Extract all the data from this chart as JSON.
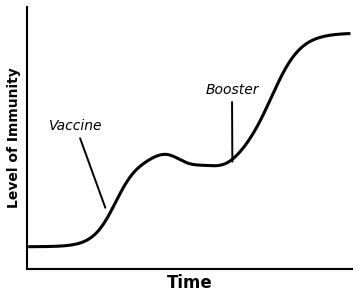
{
  "title": "",
  "xlabel": "Time",
  "ylabel": "Level of Immunity",
  "line_color": "#000000",
  "line_width": 2.2,
  "bg_color": "#ffffff",
  "vaccine_label": "Vaccine",
  "booster_label": "Booster",
  "figsize": [
    3.59,
    2.99
  ],
  "dpi": 100
}
